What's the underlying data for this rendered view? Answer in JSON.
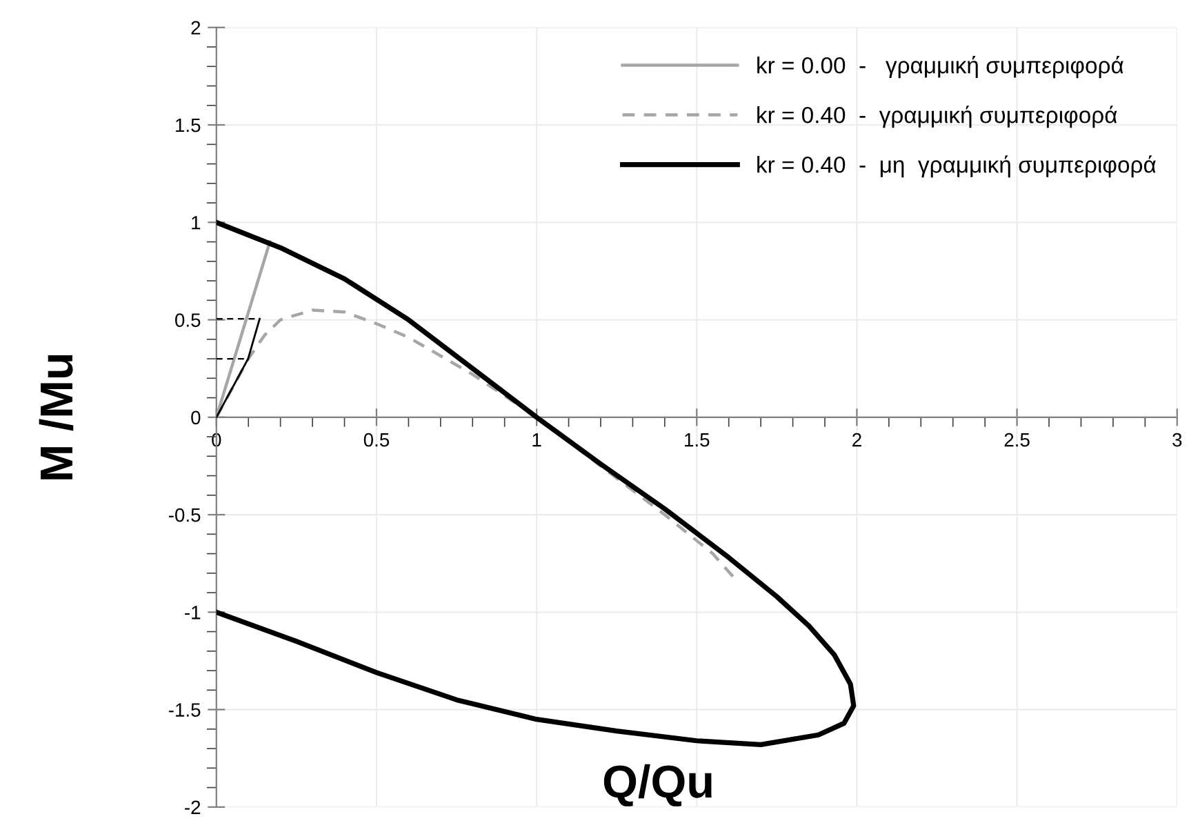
{
  "chart_data": {
    "type": "line",
    "xlabel": "Q/Qu",
    "ylabel": "M /Mu",
    "xlim": [
      0,
      3
    ],
    "ylim": [
      -2,
      2
    ],
    "xticks": [
      0,
      0.5,
      1,
      1.5,
      2,
      2.5,
      3
    ],
    "yticks": [
      {
        "value": -2,
        "label": "-2"
      },
      {
        "value": -1.5,
        "label": "-1.5"
      },
      {
        "value": -1,
        "label": "-1"
      },
      {
        "value": -0.5,
        "label": "-0.5"
      },
      0,
      0.5,
      1,
      1.5,
      2
    ],
    "grid": true,
    "legend": "top right",
    "marker": "none",
    "series": [
      {
        "name": "kr = 0.00  -   γραμμική συμπεριφορά",
        "color": "#a6a6a6",
        "line_style": "solid",
        "x": [
          0,
          0.167
        ],
        "values": [
          0,
          0.9
        ]
      },
      {
        "name": "kr = 0.40  -  γραμμική συμπεριφορά",
        "color": "#a6a6a6",
        "line_style": "dashed",
        "x": [
          0,
          0.1,
          0.15,
          0.2,
          0.3,
          0.4,
          0.5,
          0.6,
          0.8,
          1.0,
          1.2,
          1.4,
          1.55,
          1.62
        ],
        "values": [
          0,
          0.3,
          0.42,
          0.5,
          0.55,
          0.54,
          0.48,
          0.41,
          0.22,
          0.0,
          -0.25,
          -0.5,
          -0.7,
          -0.83
        ]
      },
      {
        "name": "kr = 0.40  -  μη  γραμμική συμπεριφορά",
        "color": "#000000",
        "line_style": "solid",
        "x": [
          0,
          0.2,
          0.4,
          0.6,
          0.8,
          1.0,
          1.2,
          1.4,
          1.6,
          1.75,
          1.85,
          1.93,
          1.98,
          1.99,
          1.96,
          1.88,
          1.7,
          1.5,
          1.25,
          1.0,
          0.75,
          0.5,
          0.25,
          0
        ],
        "values": [
          1,
          0.87,
          0.71,
          0.5,
          0.25,
          0.0,
          -0.24,
          -0.47,
          -0.72,
          -0.92,
          -1.07,
          -1.22,
          -1.37,
          -1.48,
          -1.57,
          -1.63,
          -1.68,
          -1.66,
          -1.61,
          -1.55,
          -1.45,
          -1.31,
          -1.15,
          -1
        ]
      },
      {
        "color": "#000000",
        "line_style": "solid",
        "x": [
          0,
          0.099,
          0.135
        ],
        "values": [
          0,
          0.3,
          0.505
        ]
      },
      {
        "color": "#000000",
        "line_style": "dashed",
        "x": [
          0,
          0.135
        ],
        "values": [
          0.505,
          0.505
        ]
      },
      {
        "color": "#000000",
        "line_style": "dashed",
        "x": [
          0,
          0.099
        ],
        "values": [
          0.3,
          0.3
        ]
      }
    ]
  }
}
